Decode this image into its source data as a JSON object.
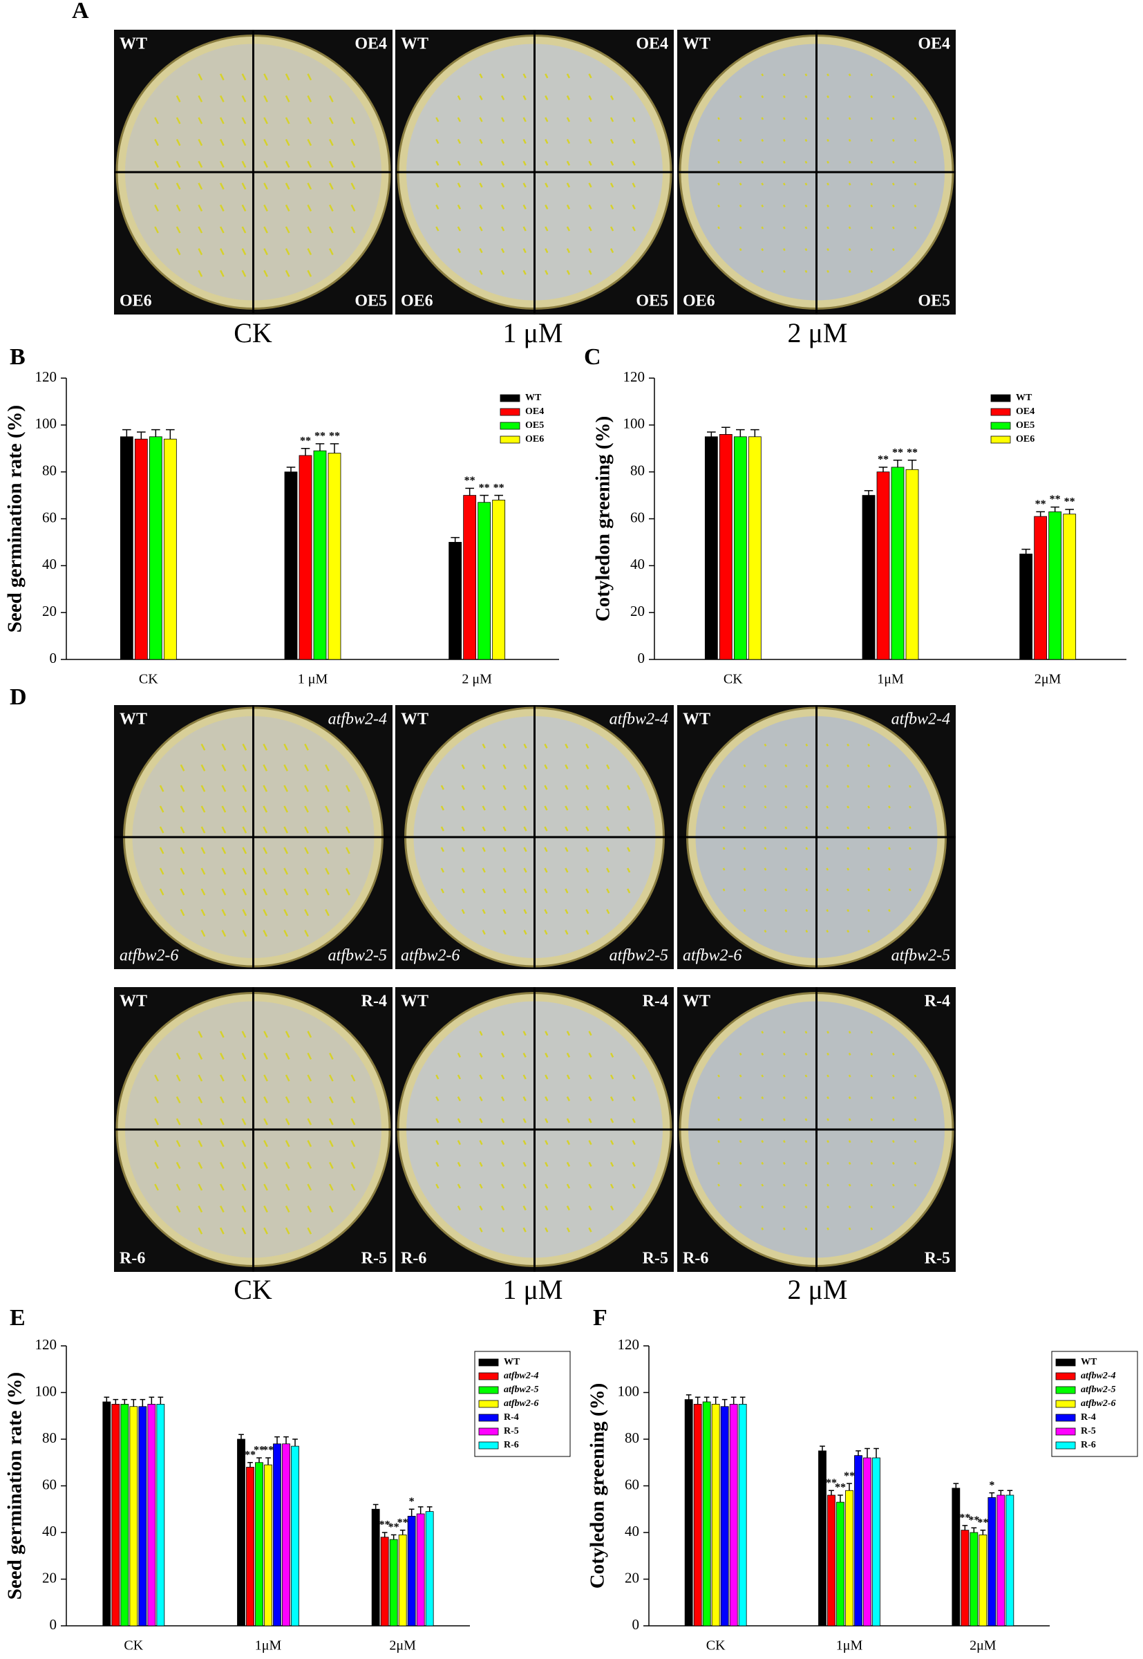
{
  "panel_A": {
    "letter": "A",
    "plates": [
      {
        "labels": [
          "WT",
          "OE4",
          "OE6",
          "OE5"
        ]
      },
      {
        "labels": [
          "WT",
          "OE4",
          "OE6",
          "OE5"
        ]
      },
      {
        "labels": [
          "WT",
          "OE4",
          "OE6",
          "OE5"
        ]
      }
    ],
    "conditions": [
      "CK",
      "1 μM",
      "2 μM"
    ]
  },
  "panel_D": {
    "letter": "D",
    "rows": [
      {
        "italic": true,
        "plates": [
          {
            "labels": [
              "WT",
              "atfbw2-4",
              "atfbw2-6",
              "atfbw2-5"
            ]
          },
          {
            "labels": [
              "WT",
              "atfbw2-4",
              "atfbw2-6",
              "atfbw2-5"
            ]
          },
          {
            "labels": [
              "WT",
              "atfbw2-4",
              "atfbw2-6",
              "atfbw2-5"
            ]
          }
        ]
      },
      {
        "italic": false,
        "plates": [
          {
            "labels": [
              "WT",
              "R-4",
              "R-6",
              "R-5"
            ]
          },
          {
            "labels": [
              "WT",
              "R-4",
              "R-6",
              "R-5"
            ]
          },
          {
            "labels": [
              "WT",
              "R-4",
              "R-6",
              "R-5"
            ]
          }
        ]
      }
    ],
    "conditions": [
      "CK",
      "1 μM",
      "2 μM"
    ]
  },
  "chart_data": [
    {
      "type": "bar",
      "panel": "B",
      "ylabel": "Seed germination rate (%)",
      "categories": [
        "CK",
        "1 μM",
        "2 μM"
      ],
      "ylim": [
        0,
        120
      ],
      "yticks": [
        0,
        20,
        40,
        60,
        80,
        100,
        120
      ],
      "legend": "upper right",
      "legend_box": false,
      "series": [
        {
          "name": "WT",
          "color": "#000000",
          "values": [
            95,
            80,
            50
          ],
          "errors": [
            3,
            2,
            2
          ],
          "significance": [
            null,
            null,
            null
          ]
        },
        {
          "name": "OE4",
          "color": "#ff0000",
          "values": [
            94,
            87,
            70
          ],
          "errors": [
            3,
            3,
            3
          ],
          "significance": [
            null,
            "**",
            "**"
          ]
        },
        {
          "name": "OE5",
          "color": "#00ff00",
          "values": [
            95,
            89,
            67
          ],
          "errors": [
            3,
            3,
            3
          ],
          "significance": [
            null,
            "**",
            "**"
          ]
        },
        {
          "name": "OE6",
          "color": "#ffff00",
          "values": [
            94,
            88,
            68
          ],
          "errors": [
            4,
            4,
            2
          ],
          "significance": [
            null,
            "**",
            "**"
          ]
        }
      ]
    },
    {
      "type": "bar",
      "panel": "C",
      "ylabel": "Cotyledon greening (%)",
      "categories": [
        "CK",
        "1μM",
        "2μM"
      ],
      "ylim": [
        0,
        120
      ],
      "yticks": [
        0,
        20,
        40,
        60,
        80,
        100,
        120
      ],
      "legend": "upper right",
      "legend_box": false,
      "series": [
        {
          "name": "WT",
          "color": "#000000",
          "values": [
            95,
            70,
            45
          ],
          "errors": [
            2,
            2,
            2
          ],
          "significance": [
            null,
            null,
            null
          ]
        },
        {
          "name": "OE4",
          "color": "#ff0000",
          "values": [
            96,
            80,
            61
          ],
          "errors": [
            3,
            2,
            2
          ],
          "significance": [
            null,
            "**",
            "**"
          ]
        },
        {
          "name": "OE5",
          "color": "#00ff00",
          "values": [
            95,
            82,
            63
          ],
          "errors": [
            3,
            3,
            2
          ],
          "significance": [
            null,
            "**",
            "**"
          ]
        },
        {
          "name": "OE6",
          "color": "#ffff00",
          "values": [
            95,
            81,
            62
          ],
          "errors": [
            3,
            4,
            2
          ],
          "significance": [
            null,
            "**",
            "**"
          ]
        }
      ]
    },
    {
      "type": "bar",
      "panel": "E",
      "ylabel": "Seed germination rate (%)",
      "categories": [
        "CK",
        "1μM",
        "2μM"
      ],
      "ylim": [
        0,
        120
      ],
      "yticks": [
        0,
        20,
        40,
        60,
        80,
        100,
        120
      ],
      "legend": "upper right",
      "legend_box": true,
      "series": [
        {
          "name": "WT",
          "color": "#000000",
          "values": [
            96,
            80,
            50
          ],
          "errors": [
            2,
            2,
            2
          ],
          "significance": [
            null,
            null,
            null
          ]
        },
        {
          "name": "atfbw2-4",
          "color": "#ff0000",
          "values": [
            95,
            68,
            38
          ],
          "errors": [
            2,
            2,
            2
          ],
          "significance": [
            null,
            "**",
            "**"
          ],
          "italic": true
        },
        {
          "name": "atfbw2-5",
          "color": "#00ff00",
          "values": [
            95,
            70,
            37
          ],
          "errors": [
            2,
            2,
            2
          ],
          "significance": [
            null,
            "**",
            "**"
          ],
          "italic": true
        },
        {
          "name": "atfbw2-6",
          "color": "#ffff00",
          "values": [
            94,
            69,
            39
          ],
          "errors": [
            3,
            3,
            2
          ],
          "significance": [
            null,
            "**",
            "**"
          ],
          "italic": true
        },
        {
          "name": "R-4",
          "color": "#0000ff",
          "values": [
            94,
            78,
            47
          ],
          "errors": [
            3,
            3,
            3
          ],
          "significance": [
            null,
            null,
            "*"
          ]
        },
        {
          "name": "R-5",
          "color": "#ff00ff",
          "values": [
            95,
            78,
            48
          ],
          "errors": [
            3,
            3,
            3
          ],
          "significance": [
            null,
            null,
            null
          ]
        },
        {
          "name": "R-6",
          "color": "#00ffff",
          "values": [
            95,
            77,
            49
          ],
          "errors": [
            3,
            3,
            2
          ],
          "significance": [
            null,
            null,
            null
          ]
        }
      ]
    },
    {
      "type": "bar",
      "panel": "F",
      "ylabel": "Cotyledon greening (%)",
      "categories": [
        "CK",
        "1μM",
        "2μM"
      ],
      "ylim": [
        0,
        120
      ],
      "yticks": [
        0,
        20,
        40,
        60,
        80,
        100,
        120
      ],
      "legend": "upper right",
      "legend_box": true,
      "series": [
        {
          "name": "WT",
          "color": "#000000",
          "values": [
            97,
            75,
            59
          ],
          "errors": [
            2,
            2,
            2
          ],
          "significance": [
            null,
            null,
            null
          ]
        },
        {
          "name": "atfbw2-4",
          "color": "#ff0000",
          "values": [
            95,
            56,
            41
          ],
          "errors": [
            3,
            2,
            2
          ],
          "significance": [
            null,
            "**",
            "**"
          ],
          "italic": true
        },
        {
          "name": "atfbw2-5",
          "color": "#00ff00",
          "values": [
            96,
            53,
            40
          ],
          "errors": [
            2,
            3,
            2
          ],
          "significance": [
            null,
            "**",
            "**"
          ],
          "italic": true
        },
        {
          "name": "atfbw2-6",
          "color": "#ffff00",
          "values": [
            95,
            58,
            39
          ],
          "errors": [
            3,
            3,
            2
          ],
          "significance": [
            null,
            "**",
            "**"
          ],
          "italic": true
        },
        {
          "name": "R-4",
          "color": "#0000ff",
          "values": [
            94,
            73,
            55
          ],
          "errors": [
            3,
            2,
            2
          ],
          "significance": [
            null,
            null,
            "*"
          ]
        },
        {
          "name": "R-5",
          "color": "#ff00ff",
          "values": [
            95,
            72,
            56
          ],
          "errors": [
            3,
            4,
            2
          ],
          "significance": [
            null,
            null,
            null
          ]
        },
        {
          "name": "R-6",
          "color": "#00ffff",
          "values": [
            95,
            72,
            56
          ],
          "errors": [
            3,
            4,
            2
          ],
          "significance": [
            null,
            null,
            null
          ]
        }
      ]
    }
  ]
}
